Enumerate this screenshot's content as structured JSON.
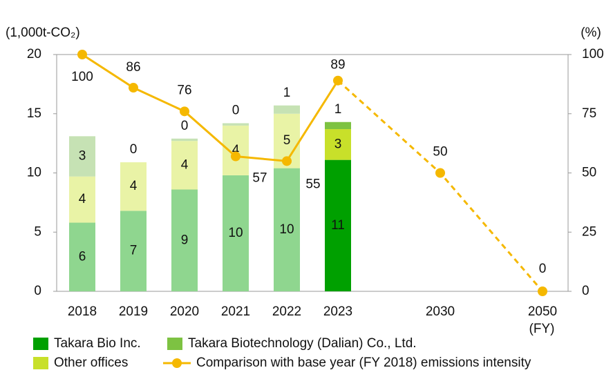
{
  "chart_data": {
    "type": "bar",
    "categories": [
      "2018",
      "2019",
      "2020",
      "2021",
      "2022",
      "2023",
      "2030",
      "2050"
    ],
    "y_label": "(1,000t-CO₂)",
    "y2_label": "(%)",
    "x_label": "(FY)",
    "ylim": [
      0,
      20
    ],
    "yticks": [
      0,
      5,
      10,
      15,
      20
    ],
    "y2lim": [
      0,
      100
    ],
    "y2ticks": [
      0,
      25,
      50,
      75,
      100
    ],
    "series": [
      {
        "name": "Takara Bio Inc.",
        "color": "#00a000",
        "colors": [
          "#8fd68f",
          "#8fd68f",
          "#8fd68f",
          "#8fd68f",
          "#8fd68f",
          "#00a000",
          null,
          null
        ],
        "values": [
          5.8,
          6.8,
          8.6,
          9.8,
          10.4,
          11.1,
          null,
          null
        ],
        "value_labels": [
          "6",
          "7",
          "9",
          "10",
          "10",
          "11",
          null,
          null
        ]
      },
      {
        "name": "Other offices",
        "color": "#c8e02a",
        "colors": [
          "#e9f3a6",
          "#e9f3a6",
          "#e9f3a6",
          "#e9f3a6",
          "#e9f3a6",
          "#c8e02a",
          null,
          null
        ],
        "values": [
          3.9,
          4.1,
          4.1,
          4.2,
          4.6,
          2.6,
          null,
          null
        ],
        "value_labels": [
          "4",
          "4",
          "4",
          "4",
          "5",
          "3",
          null,
          null
        ]
      },
      {
        "name": "Takara Biotechnology (Dalian) Co., Ltd.",
        "color": "#7dc242",
        "colors": [
          "#c6e2b4",
          "#c6e2b4",
          "#c6e2b4",
          "#c6e2b4",
          "#c6e2b4",
          "#7dc242",
          null,
          null
        ],
        "values": [
          3.4,
          0,
          0.2,
          0.2,
          0.7,
          0.6,
          null,
          null
        ],
        "value_labels": [
          "3",
          "0",
          "0",
          "0",
          "1",
          "1",
          null,
          null
        ]
      },
      {
        "name": "Comparison with base year (FY 2018) emissions intensity",
        "color": "#f5b800",
        "type": "line",
        "axis": "y2",
        "values": [
          100,
          86,
          76,
          57,
          55,
          89,
          50,
          0
        ]
      }
    ]
  }
}
